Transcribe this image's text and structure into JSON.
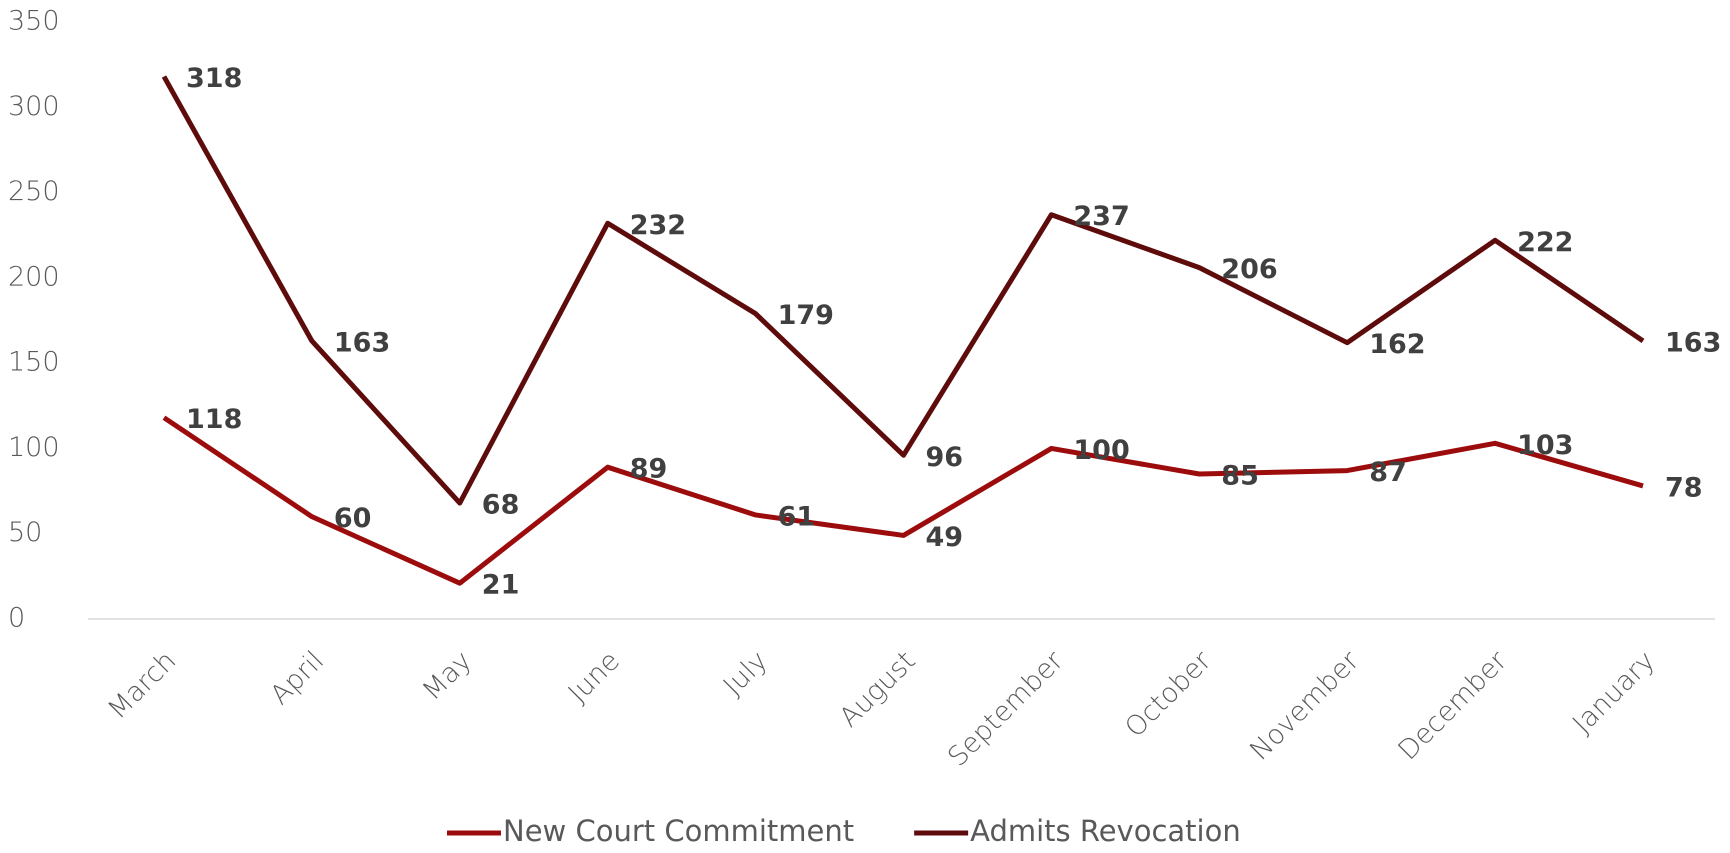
{
  "chart_data": {
    "type": "line",
    "categories": [
      "March",
      "April",
      "May",
      "June",
      "July",
      "August",
      "September",
      "October",
      "November",
      "December",
      "January"
    ],
    "series": [
      {
        "name": "New Court Commitment",
        "color": "#9c0c0c",
        "values": [
          118,
          60,
          21,
          89,
          61,
          49,
          100,
          85,
          87,
          103,
          78
        ]
      },
      {
        "name": "Admits Revocation",
        "color": "#5e0b0b",
        "values": [
          318,
          163,
          68,
          232,
          179,
          96,
          237,
          206,
          162,
          222,
          163
        ]
      }
    ],
    "ylim": [
      0,
      350
    ],
    "yticks": [
      0,
      50,
      100,
      150,
      200,
      250,
      300,
      350
    ],
    "grid": false,
    "legend": "bottom"
  }
}
